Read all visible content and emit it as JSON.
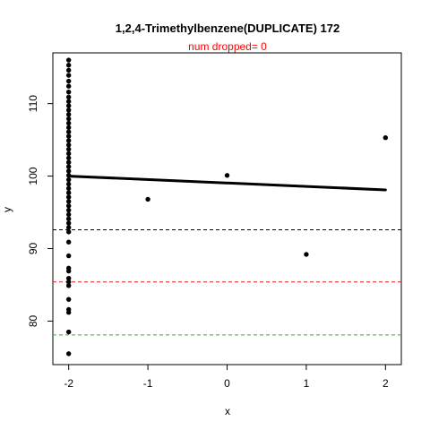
{
  "chart_data": {
    "type": "scatter",
    "title": "1,2,4-Trimethylbenzene(DUPLICATE) 172",
    "subtitle": "num dropped= 0",
    "xlabel": "x",
    "ylabel": "y",
    "xlim": [
      -2.2,
      2.2
    ],
    "ylim": [
      74,
      117
    ],
    "xticks": [
      -2,
      -1,
      0,
      1,
      2
    ],
    "yticks": [
      80,
      90,
      100,
      110
    ],
    "grid": false,
    "points": [
      {
        "x": -2,
        "y": 116.0
      },
      {
        "x": -2,
        "y": 115.3
      },
      {
        "x": -2,
        "y": 114.6
      },
      {
        "x": -2,
        "y": 113.9
      },
      {
        "x": -2,
        "y": 113.1
      },
      {
        "x": -2,
        "y": 112.4
      },
      {
        "x": -2,
        "y": 111.6
      },
      {
        "x": -2,
        "y": 110.9
      },
      {
        "x": -2,
        "y": 110.3
      },
      {
        "x": -2,
        "y": 109.7
      },
      {
        "x": -2,
        "y": 109.1
      },
      {
        "x": -2,
        "y": 108.5
      },
      {
        "x": -2,
        "y": 107.9
      },
      {
        "x": -2,
        "y": 107.3
      },
      {
        "x": -2,
        "y": 106.7
      },
      {
        "x": -2,
        "y": 106.1
      },
      {
        "x": -2,
        "y": 105.5
      },
      {
        "x": -2,
        "y": 104.9
      },
      {
        "x": -2,
        "y": 104.3
      },
      {
        "x": -2,
        "y": 103.7
      },
      {
        "x": -2,
        "y": 103.1
      },
      {
        "x": -2,
        "y": 102.5
      },
      {
        "x": -2,
        "y": 101.9
      },
      {
        "x": -2,
        "y": 101.3
      },
      {
        "x": -2,
        "y": 100.7
      },
      {
        "x": -2,
        "y": 100.1
      },
      {
        "x": -2,
        "y": 99.5
      },
      {
        "x": -2,
        "y": 98.9
      },
      {
        "x": -2,
        "y": 98.3
      },
      {
        "x": -2,
        "y": 97.7
      },
      {
        "x": -2,
        "y": 97.1
      },
      {
        "x": -2,
        "y": 96.5
      },
      {
        "x": -2,
        "y": 95.9
      },
      {
        "x": -2,
        "y": 95.3
      },
      {
        "x": -2,
        "y": 94.7
      },
      {
        "x": -2,
        "y": 94.1
      },
      {
        "x": -2,
        "y": 93.5
      },
      {
        "x": -2,
        "y": 92.9
      },
      {
        "x": -2,
        "y": 92.3
      },
      {
        "x": -2,
        "y": 90.9
      },
      {
        "x": -2,
        "y": 89.0
      },
      {
        "x": -2,
        "y": 87.3
      },
      {
        "x": -2,
        "y": 86.9
      },
      {
        "x": -2,
        "y": 85.9
      },
      {
        "x": -2,
        "y": 85.4
      },
      {
        "x": -2,
        "y": 84.9
      },
      {
        "x": -2,
        "y": 83.0
      },
      {
        "x": -2,
        "y": 81.6
      },
      {
        "x": -2,
        "y": 81.2
      },
      {
        "x": -2,
        "y": 78.5
      },
      {
        "x": -2,
        "y": 75.5
      },
      {
        "x": -1,
        "y": 96.8
      },
      {
        "x": 0,
        "y": 100.1
      },
      {
        "x": 1,
        "y": 89.2
      },
      {
        "x": 2,
        "y": 105.3
      }
    ],
    "fit_line": {
      "x": [
        -2,
        2
      ],
      "y": [
        100.0,
        98.1
      ],
      "color": "#000000"
    },
    "hlines": [
      {
        "y": 92.6,
        "color": "#000000",
        "style": "dashed"
      },
      {
        "y": 85.4,
        "color": "#e41a1c",
        "style": "dashed"
      },
      {
        "y": 78.1,
        "color": "#22bb22",
        "style": "dashed"
      }
    ],
    "colors": {
      "subtitle": "#ff0000",
      "points": "#000000",
      "axis": "#000000"
    }
  }
}
